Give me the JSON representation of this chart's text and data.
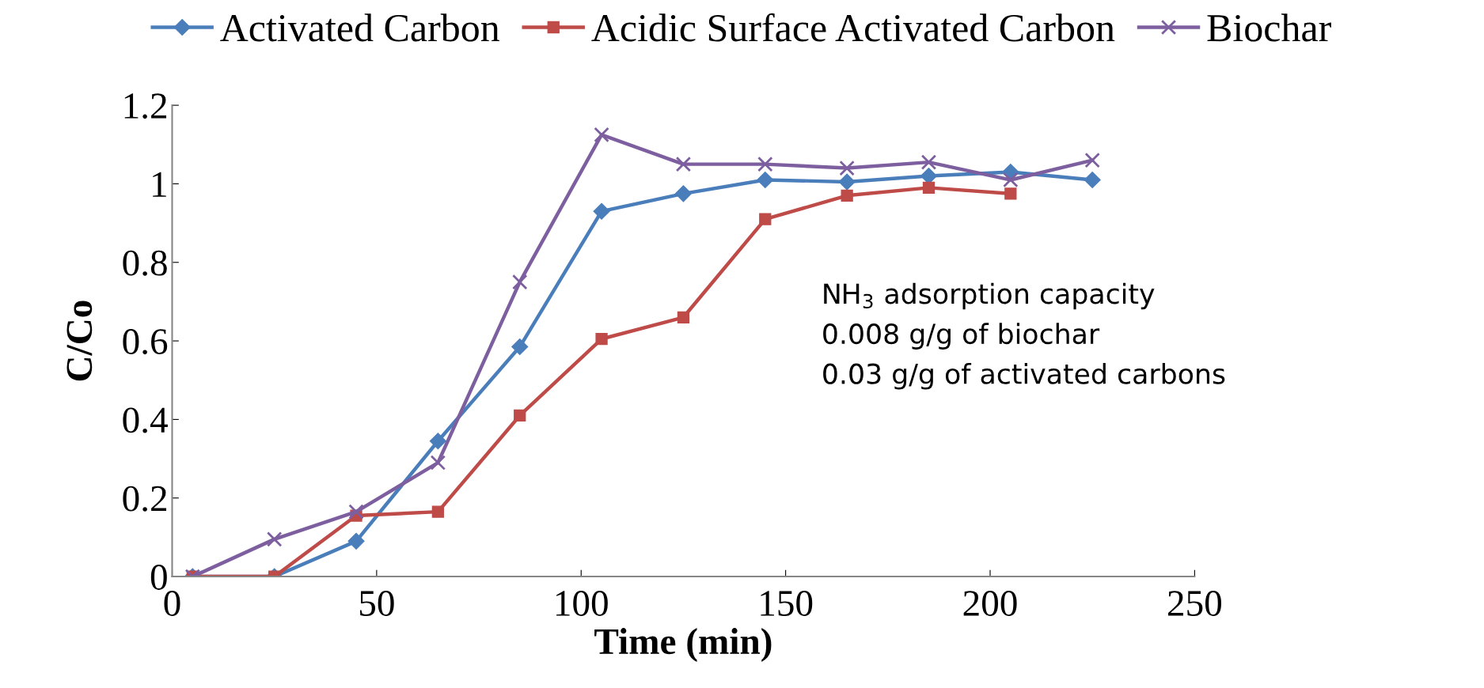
{
  "chart_data": {
    "type": "line",
    "xlabel": "Time (min)",
    "ylabel": "C/Co",
    "x": [
      5,
      25,
      45,
      65,
      85,
      105,
      125,
      145,
      165,
      185,
      205,
      225
    ],
    "series": [
      {
        "name": "Activated Carbon",
        "color": "#4a7ebb",
        "marker": "diamond",
        "values": [
          0,
          0,
          0.09,
          0.345,
          0.585,
          0.93,
          0.975,
          1.01,
          1.005,
          1.02,
          1.03,
          1.01
        ]
      },
      {
        "name": "Acidic Surface Activated Carbon",
        "color": "#be4b48",
        "marker": "square",
        "values": [
          0,
          0,
          0.155,
          0.165,
          0.41,
          0.605,
          0.66,
          0.91,
          0.97,
          0.99,
          0.975,
          null
        ]
      },
      {
        "name": "Biochar",
        "color": "#7d5fa0",
        "marker": "cross",
        "values": [
          0,
          0.095,
          0.165,
          0.29,
          0.75,
          1.125,
          1.05,
          1.05,
          1.04,
          1.055,
          1.01,
          1.06
        ]
      }
    ],
    "xlim": [
      0,
      250
    ],
    "xticks": [
      0,
      50,
      100,
      150,
      200,
      250
    ],
    "ylim": [
      0,
      1.2
    ],
    "yticks": [
      0,
      0.2,
      0.4,
      0.6,
      0.8,
      1,
      1.2
    ],
    "annotations": [
      "NH$_{3}$ adsorption capacity",
      "0.008 g/g of biochar",
      "0.03 g/g of activated carbons"
    ],
    "legend": "top",
    "grid": false,
    "line_style": "solid"
  }
}
